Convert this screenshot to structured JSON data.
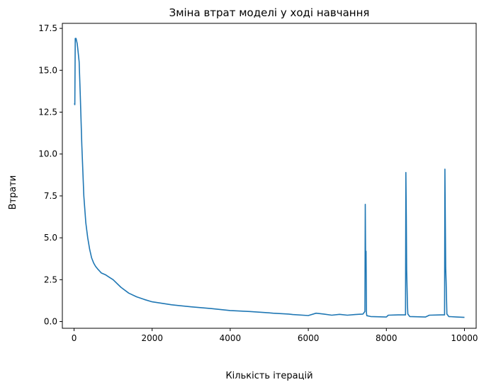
{
  "chart_data": {
    "type": "line",
    "title": "Зміна втрат моделі у ході навчання",
    "xlabel": "Кількість ітерацій",
    "ylabel": "Втрати",
    "xlim": [
      -300,
      10300
    ],
    "ylim": [
      -0.4,
      17.8
    ],
    "xticks": [
      0,
      2000,
      4000,
      6000,
      8000,
      10000
    ],
    "xtick_labels": [
      "0",
      "2000",
      "4000",
      "6000",
      "8000",
      "10000"
    ],
    "yticks": [
      0.0,
      2.5,
      5.0,
      7.5,
      10.0,
      12.5,
      15.0,
      17.5
    ],
    "ytick_labels": [
      "0.0",
      "2.5",
      "5.0",
      "7.5",
      "10.0",
      "12.5",
      "15.0",
      "17.5"
    ],
    "grid": false,
    "legend": "none",
    "series": [
      {
        "color": "#1f77b4",
        "x": [
          0,
          10,
          20,
          30,
          50,
          80,
          100,
          130,
          160,
          200,
          250,
          300,
          350,
          400,
          450,
          500,
          550,
          600,
          700,
          800,
          900,
          1000,
          1200,
          1400,
          1600,
          1800,
          2000,
          2500,
          3000,
          3500,
          4000,
          4500,
          5000,
          5100,
          5500,
          5600,
          6000,
          6200,
          6400,
          6600,
          6800,
          7000,
          7200,
          7400,
          7450,
          7460,
          7470,
          7480,
          7490,
          7500,
          7600,
          8000,
          8050,
          8300,
          8490,
          8500,
          8510,
          8520,
          8530,
          8540,
          8550,
          8600,
          9000,
          9100,
          9400,
          9490,
          9500,
          9510,
          9520,
          9530,
          9540,
          9550,
          9600,
          9800,
          10000
        ],
        "y": [
          13.0,
          13.0,
          12.95,
          16.9,
          16.9,
          16.6,
          16.2,
          15.5,
          13.5,
          10.5,
          7.5,
          5.9,
          5.0,
          4.3,
          3.8,
          3.5,
          3.3,
          3.15,
          2.9,
          2.8,
          2.65,
          2.5,
          2.05,
          1.7,
          1.48,
          1.32,
          1.18,
          1.0,
          0.88,
          0.78,
          0.66,
          0.6,
          0.52,
          0.5,
          0.45,
          0.42,
          0.36,
          0.5,
          0.45,
          0.38,
          0.43,
          0.38,
          0.42,
          0.45,
          0.6,
          7.0,
          3.0,
          4.2,
          0.5,
          0.35,
          0.3,
          0.27,
          0.38,
          0.4,
          0.4,
          8.9,
          6.3,
          3.1,
          2.0,
          1.0,
          0.45,
          0.3,
          0.27,
          0.38,
          0.4,
          0.4,
          9.1,
          5.8,
          3.2,
          2.4,
          1.5,
          0.45,
          0.3,
          0.27,
          0.25
        ]
      }
    ]
  }
}
